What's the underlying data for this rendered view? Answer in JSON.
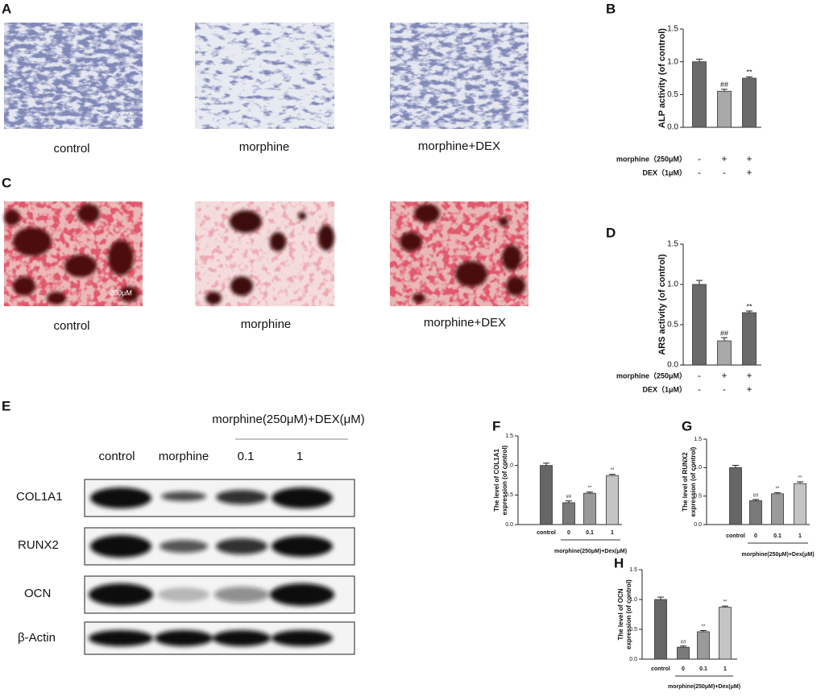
{
  "panel_labels": [
    "A",
    "B",
    "C",
    "D",
    "E",
    "F",
    "G",
    "H"
  ],
  "alp_images": {
    "captions": [
      "control",
      "morphine",
      "morphine+DEX"
    ],
    "scale_bar": "200μM"
  },
  "ars_images": {
    "captions": [
      "control",
      "morphine",
      "morphine+DEX"
    ],
    "scale_bar": "200μM"
  },
  "western_blot": {
    "treatment_header": "morphine(250μM)+DEX(μM)",
    "columns": [
      "control",
      "morphine",
      "0.1",
      "1"
    ],
    "rows": [
      "COL1A1",
      "RUNX2",
      "OCN",
      "β-Actin"
    ]
  },
  "chart_data": [
    {
      "type": "bar",
      "ylabel": "ALP activity (of control)",
      "values": [
        1.0,
        0.55,
        0.75
      ],
      "errors": [
        0.04,
        0.03,
        0.02
      ],
      "colors": [
        "#6a6a6a",
        "#a8a8a8",
        "#6a6a6a"
      ],
      "annotations": [
        null,
        "##",
        "**"
      ],
      "ylim": [
        0,
        1.5
      ],
      "yticks": [
        {
          "value": 0,
          "label": "0.0"
        },
        {
          "value": 0.5,
          "label": "0.5"
        },
        {
          "value": 1,
          "label": "1.0"
        },
        {
          "value": 1.5,
          "label": "1.5"
        }
      ],
      "conditions": [
        {
          "label": "morphine（250μM）",
          "signs": [
            "-",
            "+",
            "+"
          ]
        },
        {
          "label": "DEX（1μM）",
          "signs": [
            "-",
            "-",
            "+"
          ]
        }
      ]
    },
    {
      "type": "bar",
      "ylabel": "ARS activity (of control)",
      "values": [
        1.0,
        0.3,
        0.65
      ],
      "errors": [
        0.05,
        0.04,
        0.02
      ],
      "colors": [
        "#6a6a6a",
        "#a8a8a8",
        "#6a6a6a"
      ],
      "annotations": [
        null,
        "##",
        "**"
      ],
      "ylim": [
        0,
        1.5
      ],
      "yticks": [
        {
          "value": 0,
          "label": "0.0"
        },
        {
          "value": 0.5,
          "label": "0.5"
        },
        {
          "value": 1,
          "label": "1.0"
        },
        {
          "value": 1.5,
          "label": "1.5"
        }
      ],
      "conditions": [
        {
          "label": "morphine（250μM）",
          "signs": [
            "-",
            "+",
            "+"
          ]
        },
        {
          "label": "DEX（1μM）",
          "signs": [
            "-",
            "-",
            "+"
          ]
        }
      ]
    },
    {
      "type": "bar",
      "ylabel": [
        "The level of COL1A1",
        "expression (of control)"
      ],
      "categories": [
        "control",
        "0",
        "0.1",
        "1"
      ],
      "xlabel": "morphine(250μM)+Dex(μM)",
      "values": [
        1.0,
        0.37,
        0.53,
        0.83
      ],
      "errors": [
        0.04,
        0.03,
        0.02,
        0.02
      ],
      "colors": [
        "#666666",
        "#7a7a7a",
        "#9a9a9a",
        "#c4c4c4"
      ],
      "annotations": [
        null,
        "##",
        "**",
        "**"
      ],
      "ylim": [
        0,
        1.5
      ],
      "yticks": [
        {
          "value": 0,
          "label": "0.0"
        },
        {
          "value": 0.5,
          "label": "0.5"
        },
        {
          "value": 1,
          "label": "1.0"
        },
        {
          "value": 1.5,
          "label": "1.5"
        }
      ]
    },
    {
      "type": "bar",
      "ylabel": [
        "The level of RUNX2",
        "expression (of control)"
      ],
      "categories": [
        "control",
        "0",
        "0.1",
        "1"
      ],
      "xlabel": "morphine(250μM)+Dex(μM)",
      "values": [
        1.0,
        0.42,
        0.54,
        0.72
      ],
      "errors": [
        0.04,
        0.02,
        0.02,
        0.03
      ],
      "colors": [
        "#666666",
        "#7a7a7a",
        "#9a9a9a",
        "#c4c4c4"
      ],
      "annotations": [
        null,
        "##",
        "**",
        "**"
      ],
      "ylim": [
        0,
        1.5
      ],
      "yticks": [
        {
          "value": 0,
          "label": "0.0"
        },
        {
          "value": 0.5,
          "label": "0.5"
        },
        {
          "value": 1,
          "label": "1.0"
        },
        {
          "value": 1.5,
          "label": "1.5"
        }
      ]
    },
    {
      "type": "bar",
      "ylabel": [
        "The level of OCN",
        "expression (of control)"
      ],
      "categories": [
        "control",
        "0",
        "0.1",
        "1"
      ],
      "xlabel": "morphine(250μM)+Dex(μM)",
      "values": [
        1.0,
        0.2,
        0.46,
        0.87
      ],
      "errors": [
        0.04,
        0.02,
        0.02,
        0.02
      ],
      "colors": [
        "#666666",
        "#7a7a7a",
        "#9a9a9a",
        "#c4c4c4"
      ],
      "annotations": [
        null,
        "##",
        "**",
        "**"
      ],
      "ylim": [
        0,
        1.5
      ],
      "yticks": [
        {
          "value": 0,
          "label": "0.0"
        },
        {
          "value": 0.5,
          "label": "0.5"
        },
        {
          "value": 1,
          "label": "1.0"
        },
        {
          "value": 1.5,
          "label": "1.5"
        }
      ]
    }
  ]
}
